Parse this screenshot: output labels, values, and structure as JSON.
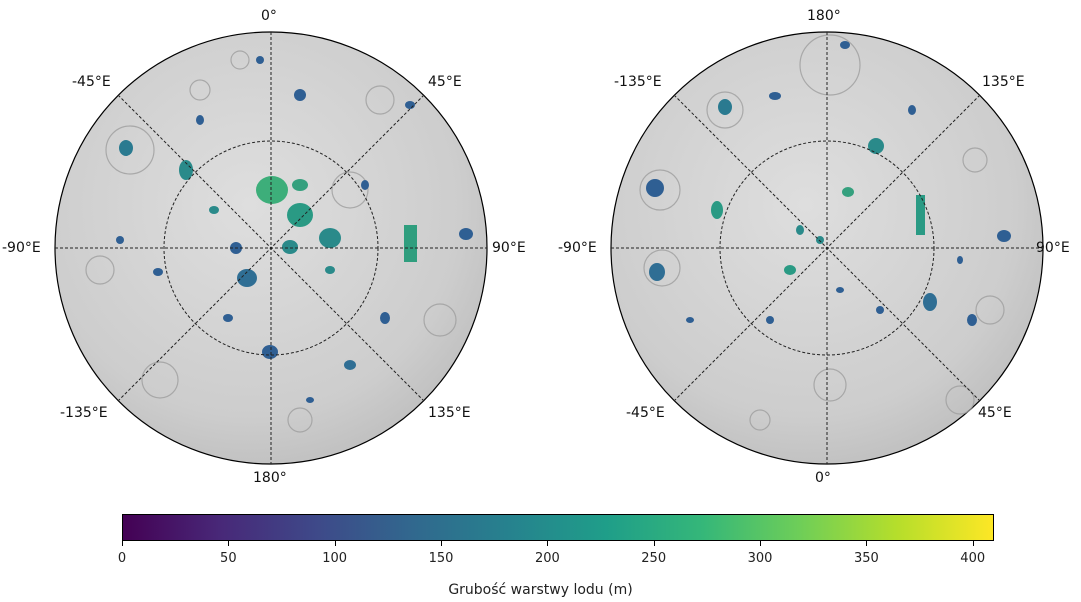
{
  "maps": [
    {
      "name": "north",
      "labels": {
        "top": "0°",
        "top_left": "-45°E",
        "top_right": "45°E",
        "left": "-90°E",
        "right": "90°E",
        "bottom_left": "-135°E",
        "bottom_right": "135°E",
        "bottom": "180°"
      }
    },
    {
      "name": "south",
      "labels": {
        "top": "180°",
        "top_left": "-135°E",
        "top_right": "135°E",
        "left": "-90°E",
        "right": "90°E",
        "bottom_left": "-45°E",
        "bottom_right": "45°E",
        "bottom": "0°"
      }
    }
  ],
  "colorbar": {
    "title": "Grubość warstwy lodu (m)",
    "min": 0,
    "max": 410,
    "ticks": [
      "0",
      "50",
      "100",
      "150",
      "200",
      "250",
      "300",
      "350",
      "400"
    ],
    "tick_values": [
      0,
      50,
      100,
      150,
      200,
      250,
      300,
      350,
      400
    ],
    "colormap": "viridis",
    "colors": [
      "#440154",
      "#482878",
      "#3e4989",
      "#31688e",
      "#26828e",
      "#1f9e89",
      "#35b779",
      "#6ece58",
      "#b5de2b",
      "#fde725"
    ]
  },
  "colors": {
    "surface": "#cfcfcf",
    "ice_dark": "#2f5f93",
    "ice_mid": "#2a8a8a",
    "ice_light": "#3dae7a"
  }
}
